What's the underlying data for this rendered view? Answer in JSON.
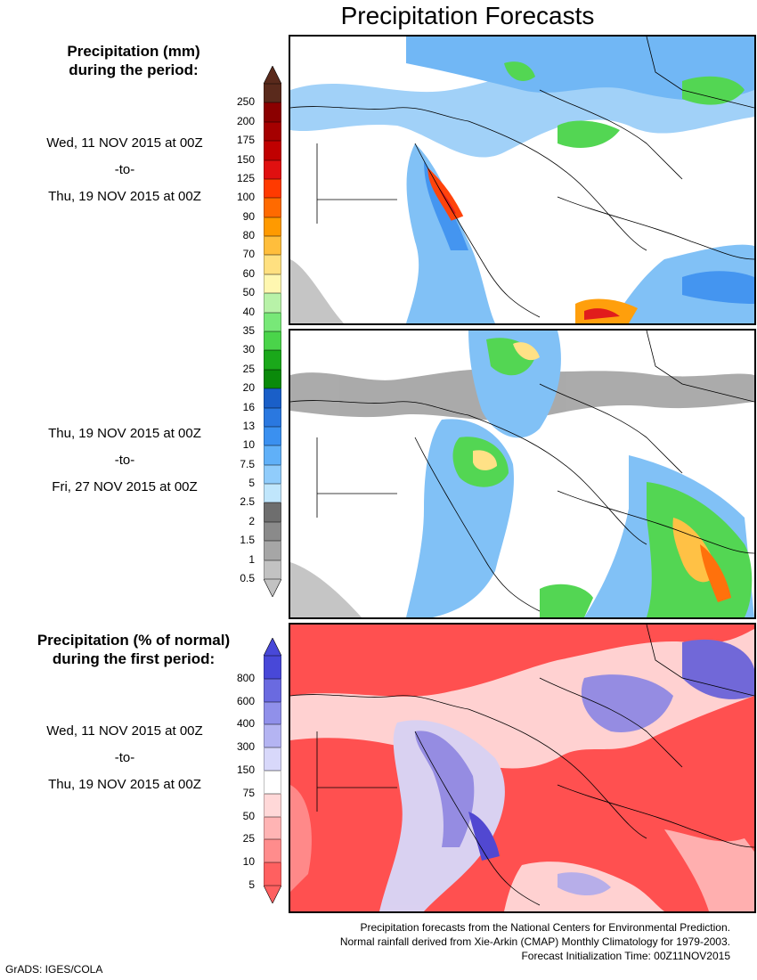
{
  "title": "Precipitation Forecasts",
  "top_legend": {
    "heading_line1": "Precipitation (mm)",
    "heading_line2": "during the period:"
  },
  "period1": {
    "start": "Wed, 11 NOV 2015 at 00Z",
    "to": "-to-",
    "end": "Thu, 19 NOV 2015 at 00Z"
  },
  "period2": {
    "start": "Thu, 19 NOV 2015 at 00Z",
    "to": "-to-",
    "end": "Fri, 27 NOV 2015 at 00Z"
  },
  "bottom_legend": {
    "heading_line1": "Precipitation (% of normal)",
    "heading_line2": "during the first period:"
  },
  "period3": {
    "start": "Wed, 11 NOV 2015 at 00Z",
    "to": "-to-",
    "end": "Thu, 19 NOV 2015 at 00Z"
  },
  "precip_scale": {
    "labels": [
      "250",
      "200",
      "175",
      "150",
      "125",
      "100",
      "90",
      "80",
      "70",
      "60",
      "50",
      "40",
      "35",
      "30",
      "25",
      "20",
      "16",
      "13",
      "10",
      "7.5",
      "5",
      "2.5",
      "2",
      "1.5",
      "1",
      "0.5"
    ],
    "colors": [
      "#5a2a1c",
      "#8b0000",
      "#a50000",
      "#c00000",
      "#e01010",
      "#ff3a00",
      "#ff6a00",
      "#ff9a00",
      "#ffbe3c",
      "#ffe080",
      "#fff7b0",
      "#b8f2a8",
      "#78e878",
      "#4ad44a",
      "#1aa81a",
      "#0a8a0a",
      "#1a5fc8",
      "#2a78e0",
      "#3a90f0",
      "#60b0f8",
      "#90ccfb",
      "#c0e6fc",
      "#6e6e6e",
      "#8a8a8a",
      "#a6a6a6",
      "#c2c2c2"
    ]
  },
  "pct_scale": {
    "labels": [
      "800",
      "600",
      "400",
      "300",
      "150",
      "75",
      "50",
      "25",
      "10",
      "5"
    ],
    "colors": [
      "#4848d8",
      "#6a6ae0",
      "#9090ea",
      "#b4b4f2",
      "#d8d8fa",
      "#ffffff",
      "#ffd8d8",
      "#ffb4b4",
      "#ff8c8c",
      "#ff6060"
    ]
  },
  "footer": {
    "line1": "Precipitation forecasts from the National Centers for Environmental Prediction.",
    "line2": "Normal rainfall derived from Xie-Arkin (CMAP) Monthly Climatology for 1979-2003.",
    "line3": "Forecast Initialization Time: 00Z11NOV2015"
  },
  "credit": "GrADS: IGES/COLA"
}
